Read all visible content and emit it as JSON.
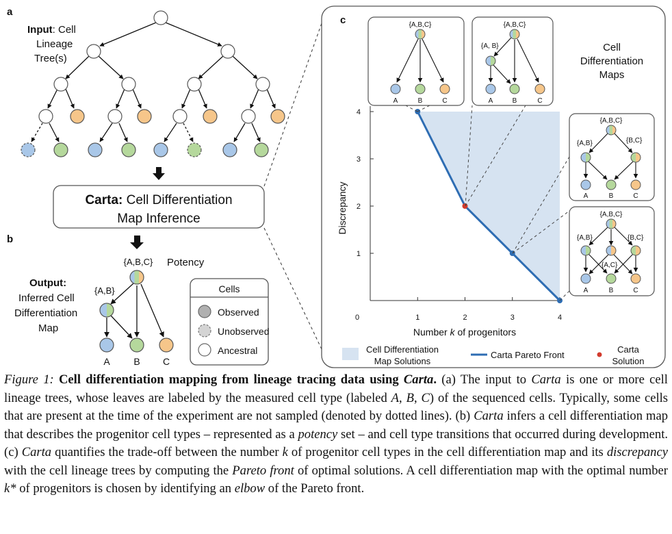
{
  "panel_a": {
    "letter": "a",
    "input_label": "Input",
    "input_text": ": Cell",
    "input_line2": "Lineage",
    "input_line3": "Tree(s)"
  },
  "carta_box": {
    "title_bold": "Carta:",
    "title_rest": " Cell Differentiation",
    "title_line2": "Map Inference"
  },
  "panel_b": {
    "letter": "b",
    "output_label": "Output:",
    "output_line2": "Inferred Cell",
    "output_line3": "Differentiation",
    "output_line4": "Map",
    "potency_label": "Potency",
    "root_set": "{A,B,C}",
    "mid_set": "{A,B}",
    "leaves": [
      "A",
      "B",
      "C"
    ]
  },
  "legend_cells": {
    "title": "Cells",
    "items": [
      "Observed",
      "Unobserved",
      "Ancestral"
    ]
  },
  "panel_c": {
    "letter": "c",
    "maps_label": [
      "Cell",
      "Differentiation",
      "Maps"
    ],
    "xlabel_pre": "Number ",
    "xlabel_var": "k",
    "xlabel_post": " of progenitors",
    "ylabel": "Discrepancy",
    "x_ticks": [
      "0",
      "1",
      "2",
      "3",
      "4"
    ],
    "y_ticks": [
      "1",
      "2",
      "3",
      "4"
    ],
    "map1": {
      "root": "{A,B,C}",
      "leaves": [
        "A",
        "B",
        "C"
      ]
    },
    "map2": {
      "root": "{A,B,C}",
      "mid": "{A, B}",
      "leaves": [
        "A",
        "B",
        "C"
      ]
    },
    "map3": {
      "root": "{A,B,C}",
      "mid1": "{A,B}",
      "mid2": "{B,C}",
      "leaves": [
        "A",
        "B",
        "C"
      ]
    },
    "map4": {
      "root": "{A,B,C}",
      "mid1": "{A,B}",
      "mid2": "{B,C}",
      "mid3": "{A,C}",
      "leaves": [
        "A",
        "B",
        "C"
      ]
    },
    "legend": {
      "solutions": [
        "Cell Differentiation",
        "Map Solutions"
      ],
      "front": "Carta Pareto Front",
      "solution": [
        "Carta",
        "Solution"
      ]
    }
  },
  "chart_data": {
    "type": "line",
    "xlabel": "Number k of progenitors",
    "ylabel": "Discrepancy",
    "x": [
      1,
      2,
      3,
      4
    ],
    "series": [
      {
        "name": "Carta Pareto Front",
        "values": [
          4,
          2,
          1,
          0
        ]
      }
    ],
    "highlight": {
      "name": "Carta Solution",
      "x": 2,
      "y": 2
    },
    "shaded_region": "Cell Differentiation Map Solutions",
    "xlim": [
      0,
      4
    ],
    "ylim": [
      0,
      4
    ],
    "colors": {
      "front": "#2e6db3",
      "solution": "#d23b2e",
      "region": "#d6e3f1"
    }
  },
  "caption": {
    "fig": "Figure 1:",
    "title_a": "Cell differentiation mapping from lineage tracing data using ",
    "title_carta": "Carta",
    "title_end": ".",
    "s1": " (a) The input to ",
    "carta": "Carta",
    "s2": " is one or more cell lineage trees, whose leaves are labeled by the measured cell type (labeled ",
    "A": "A",
    "comma1": ", ",
    "B": "B",
    "comma2": ", ",
    "C": "C",
    "s3": ") of the sequenced cells. Typically, some cells that are present at the time of the experiment are not sampled (denoted by dotted lines). (b) ",
    "s4": " infers a cell differentiation map that describes the progenitor cell types – represented as a ",
    "potency": "potency",
    "s5": " set – and cell type transitions that occurred during development. (c) ",
    "s6": " quantifies the trade-off between the number ",
    "k": "k",
    "s7": " of progenitor cell types in the cell differentiation map and its ",
    "discrepancy": "discrepancy",
    "s8": " with the cell lineage trees by computing the ",
    "pareto": "Pareto front",
    "s9": " of optimal solutions. A cell differentiation map with the optimal number ",
    "kstar": "k*",
    "s10": " of progenitors is chosen by identifying an ",
    "elbow": "elbow",
    "s11": " of the Pareto front."
  }
}
